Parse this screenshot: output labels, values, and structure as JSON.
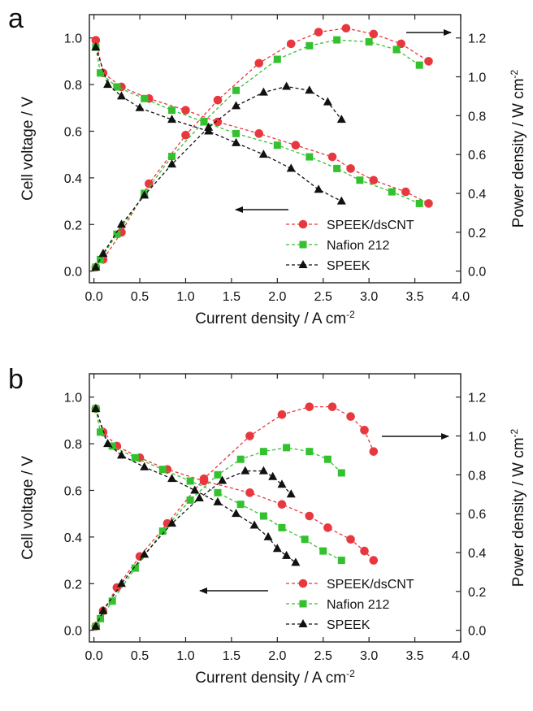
{
  "chart_data": [
    {
      "panel": "a",
      "type": "line",
      "xlabel": "Current density / A cm",
      "xlabel_sup": "-2",
      "ylabel_left": "Cell voltage / V",
      "ylabel_right": "Power density / W cm",
      "ylabel_right_sup": "-2",
      "xlim": [
        -0.05,
        4.0
      ],
      "xticks": [
        0.0,
        0.5,
        1.0,
        1.5,
        2.0,
        2.5,
        3.0,
        3.5,
        4.0
      ],
      "xtick_labels": [
        "0.0",
        "0.5",
        "1.0",
        "1.5",
        "2.0",
        "2.5",
        "3.0",
        "3.5",
        "4.0"
      ],
      "ylim_left": [
        -0.05,
        1.1
      ],
      "yticks_left": [
        0.0,
        0.2,
        0.4,
        0.6,
        0.8,
        1.0
      ],
      "ytick_labels_left": [
        "0.0",
        "0.2",
        "0.4",
        "0.6",
        "0.8",
        "1.0"
      ],
      "ylim_right": [
        -0.06,
        1.32
      ],
      "yticks_right": [
        0.0,
        0.2,
        0.4,
        0.6,
        0.8,
        1.0,
        1.2
      ],
      "ytick_labels_right": [
        "0.0",
        "0.2",
        "0.4",
        "0.6",
        "0.8",
        "1.0",
        "1.2"
      ],
      "legend_position": "lower-right",
      "series": [
        {
          "name": "SPEEK/dsCNT",
          "color": "#e8383f",
          "marker": "circle",
          "voltage": {
            "x": [
              0.02,
              0.1,
              0.3,
              0.6,
              1.0,
              1.35,
              1.8,
              2.2,
              2.6,
              2.8,
              3.05,
              3.4,
              3.65
            ],
            "y": [
              0.99,
              0.85,
              0.79,
              0.74,
              0.69,
              0.64,
              0.59,
              0.54,
              0.49,
              0.44,
              0.39,
              0.34,
              0.29
            ]
          },
          "power": {
            "x": [
              0.02,
              0.1,
              0.3,
              0.6,
              1.0,
              1.35,
              1.8,
              2.15,
              2.45,
              2.75,
              3.05,
              3.35,
              3.65
            ],
            "y": [
              0.02,
              0.06,
              0.2,
              0.45,
              0.7,
              0.88,
              1.07,
              1.17,
              1.23,
              1.25,
              1.22,
              1.17,
              1.08
            ]
          }
        },
        {
          "name": "Nafion 212",
          "color": "#33c22e",
          "marker": "square",
          "voltage": {
            "x": [
              0.02,
              0.07,
              0.25,
              0.55,
              0.85,
              1.2,
              1.55,
              2.0,
              2.35,
              2.65,
              2.9,
              3.25,
              3.55
            ],
            "y": [
              0.96,
              0.85,
              0.79,
              0.74,
              0.69,
              0.64,
              0.59,
              0.54,
              0.49,
              0.44,
              0.39,
              0.34,
              0.29
            ]
          },
          "power": {
            "x": [
              0.02,
              0.07,
              0.25,
              0.55,
              0.85,
              1.2,
              1.55,
              2.0,
              2.35,
              2.65,
              3.0,
              3.3,
              3.55
            ],
            "y": [
              0.02,
              0.06,
              0.19,
              0.4,
              0.59,
              0.77,
              0.93,
              1.09,
              1.16,
              1.19,
              1.18,
              1.14,
              1.06
            ]
          }
        },
        {
          "name": "SPEEK",
          "color": "#111111",
          "marker": "triangle",
          "voltage": {
            "x": [
              0.02,
              0.15,
              0.3,
              0.5,
              0.85,
              1.25,
              1.55,
              1.85,
              2.15,
              2.45,
              2.7
            ],
            "y": [
              0.96,
              0.8,
              0.75,
              0.7,
              0.65,
              0.6,
              0.55,
              0.5,
              0.44,
              0.35,
              0.3
            ]
          },
          "power": {
            "x": [
              0.02,
              0.1,
              0.3,
              0.55,
              0.85,
              1.25,
              1.55,
              1.85,
              2.1,
              2.35,
              2.55,
              2.7
            ],
            "y": [
              0.02,
              0.09,
              0.24,
              0.39,
              0.55,
              0.74,
              0.85,
              0.92,
              0.95,
              0.93,
              0.87,
              0.78
            ]
          }
        }
      ]
    },
    {
      "panel": "b",
      "type": "line",
      "xlabel": "Current density / A cm",
      "xlabel_sup": "-2",
      "ylabel_left": "Cell voltage / V",
      "ylabel_right": "Power density / W cm",
      "ylabel_right_sup": "-2",
      "xlim": [
        -0.05,
        4.0
      ],
      "xticks": [
        0.0,
        0.5,
        1.0,
        1.5,
        2.0,
        2.5,
        3.0,
        3.5,
        4.0
      ],
      "xtick_labels": [
        "0.0",
        "0.5",
        "1.0",
        "1.5",
        "2.0",
        "2.5",
        "3.0",
        "3.5",
        "4.0"
      ],
      "ylim_left": [
        -0.05,
        1.1
      ],
      "yticks_left": [
        0.0,
        0.2,
        0.4,
        0.6,
        0.8,
        1.0
      ],
      "ytick_labels_left": [
        "0.0",
        "0.2",
        "0.4",
        "0.6",
        "0.8",
        "1.0"
      ],
      "ylim_right": [
        -0.06,
        1.32
      ],
      "yticks_right": [
        0.0,
        0.2,
        0.4,
        0.6,
        0.8,
        1.0,
        1.2
      ],
      "ytick_labels_right": [
        "0.0",
        "0.2",
        "0.4",
        "0.6",
        "0.8",
        "1.0",
        "1.2"
      ],
      "legend_position": "lower-right",
      "series": [
        {
          "name": "SPEEK/dsCNT",
          "color": "#e8383f",
          "marker": "circle",
          "voltage": {
            "x": [
              0.02,
              0.1,
              0.25,
              0.5,
              0.8,
              1.2,
              1.7,
              2.05,
              2.35,
              2.55,
              2.8,
              2.95,
              3.05
            ],
            "y": [
              0.95,
              0.85,
              0.79,
              0.74,
              0.69,
              0.64,
              0.59,
              0.54,
              0.49,
              0.44,
              0.39,
              0.34,
              0.3
            ]
          },
          "power": {
            "x": [
              0.02,
              0.1,
              0.25,
              0.5,
              0.8,
              1.2,
              1.7,
              2.05,
              2.35,
              2.6,
              2.8,
              2.95,
              3.05
            ],
            "y": [
              0.02,
              0.1,
              0.22,
              0.38,
              0.55,
              0.78,
              1.0,
              1.11,
              1.15,
              1.15,
              1.1,
              1.03,
              0.92
            ]
          }
        },
        {
          "name": "Nafion 212",
          "color": "#33c22e",
          "marker": "square",
          "voltage": {
            "x": [
              0.02,
              0.07,
              0.2,
              0.45,
              0.75,
              1.05,
              1.35,
              1.6,
              1.85,
              2.05,
              2.3,
              2.5,
              2.7
            ],
            "y": [
              0.95,
              0.85,
              0.79,
              0.74,
              0.69,
              0.64,
              0.59,
              0.54,
              0.49,
              0.44,
              0.39,
              0.34,
              0.3
            ]
          },
          "power": {
            "x": [
              0.02,
              0.07,
              0.2,
              0.45,
              0.75,
              1.05,
              1.35,
              1.6,
              1.85,
              2.1,
              2.35,
              2.55,
              2.7
            ],
            "y": [
              0.02,
              0.06,
              0.15,
              0.32,
              0.51,
              0.67,
              0.8,
              0.88,
              0.92,
              0.94,
              0.92,
              0.88,
              0.81
            ]
          }
        },
        {
          "name": "SPEEK",
          "color": "#111111",
          "marker": "triangle",
          "voltage": {
            "x": [
              0.02,
              0.15,
              0.3,
              0.55,
              0.85,
              1.1,
              1.35,
              1.55,
              1.75,
              1.9,
              2.0,
              2.1,
              2.2
            ],
            "y": [
              0.95,
              0.8,
              0.75,
              0.7,
              0.65,
              0.6,
              0.55,
              0.5,
              0.45,
              0.4,
              0.35,
              0.32,
              0.29
            ]
          },
          "power": {
            "x": [
              0.02,
              0.1,
              0.3,
              0.55,
              0.85,
              1.15,
              1.4,
              1.65,
              1.85,
              1.95,
              2.05,
              2.15
            ],
            "y": [
              0.02,
              0.1,
              0.24,
              0.39,
              0.55,
              0.68,
              0.77,
              0.82,
              0.82,
              0.79,
              0.75,
              0.7
            ]
          }
        }
      ]
    }
  ]
}
